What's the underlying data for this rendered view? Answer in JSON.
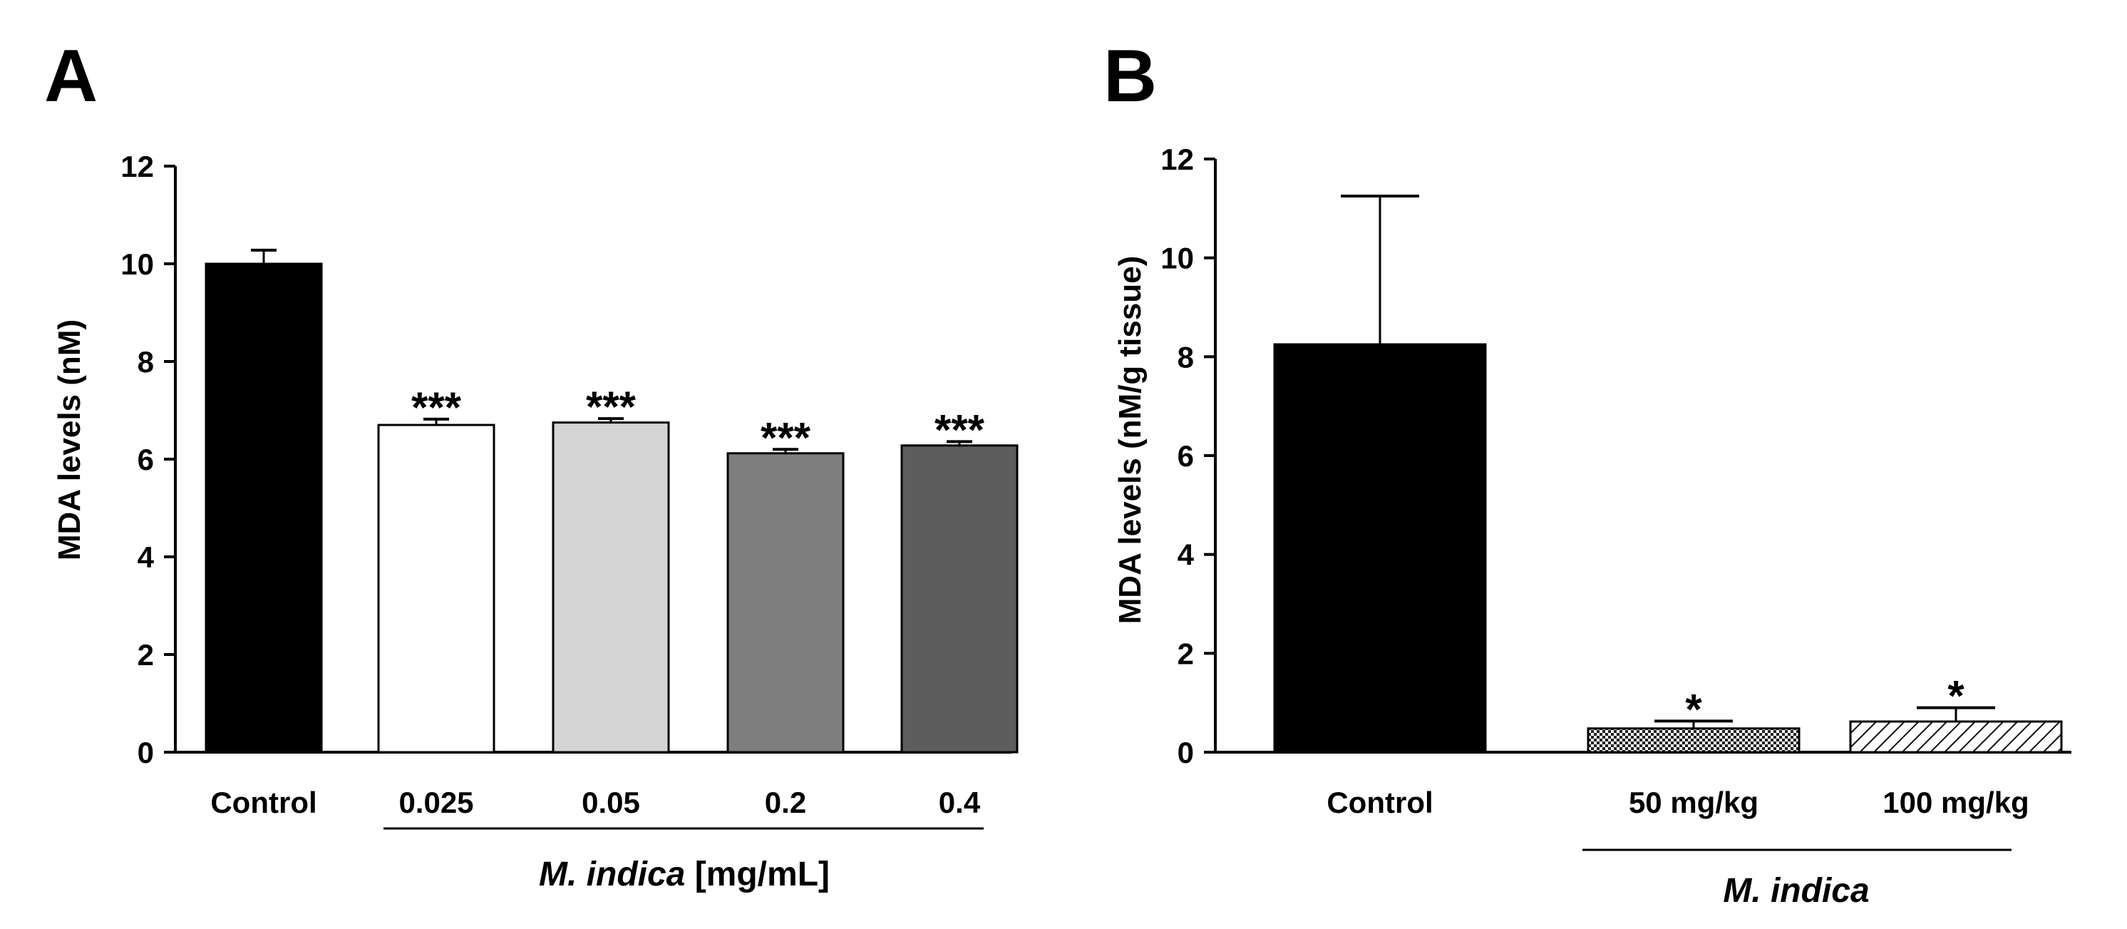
{
  "chart_data": [
    {
      "panel": "A",
      "type": "bar",
      "ylabel": "MDA levels (nM)",
      "ylim": [
        0,
        12
      ],
      "yticks": [
        0,
        2,
        4,
        6,
        8,
        10,
        12
      ],
      "categories": [
        "Control",
        "0.025",
        "0.05",
        "0.2",
        "0.4"
      ],
      "values": [
        10.0,
        6.7,
        6.75,
        6.12,
        6.28
      ],
      "errors": [
        0.28,
        0.12,
        0.08,
        0.08,
        0.08
      ],
      "significance": [
        "",
        "***",
        "***",
        "***",
        "***"
      ],
      "bar_colors": [
        "#000000",
        "#ffffff",
        "#d4d4d4",
        "#7f7f7f",
        "#5d5d5d"
      ],
      "bar_patterns": [
        "solid",
        "solid",
        "solid",
        "solid",
        "solid"
      ],
      "group_label_italic": "M. indica",
      "group_label_rest": " [mg/mL]",
      "group_start_index": 1
    },
    {
      "panel": "B",
      "type": "bar",
      "ylabel": "MDA levels (nM/g tissue)",
      "ylim": [
        0,
        12
      ],
      "yticks": [
        0,
        2,
        4,
        6,
        8,
        10,
        12
      ],
      "categories": [
        "Control",
        "50 mg/kg",
        "100 mg/kg"
      ],
      "values": [
        8.25,
        0.48,
        0.62
      ],
      "errors": [
        3.0,
        0.15,
        0.28
      ],
      "significance": [
        "",
        "*",
        "*"
      ],
      "bar_colors": [
        "#000000",
        "#ffffff",
        "#ffffff"
      ],
      "bar_patterns": [
        "solid",
        "crosshatch",
        "diagonal"
      ],
      "group_label_italic": "M. indica",
      "group_label_rest": "",
      "group_start_index": 1
    }
  ]
}
